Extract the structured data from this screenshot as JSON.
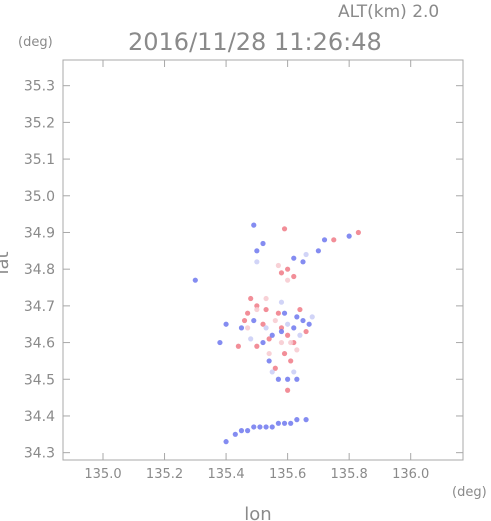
{
  "header": {
    "altitude": "ALT(km) 2.0",
    "timestamp": "2016/11/28 11:26:48"
  },
  "colors": {
    "axis": "#a8a8a8",
    "text": "#8a8a8a",
    "positive": "#f07a86",
    "negative": "#6f78ee",
    "pale_positive": "#f7c9cf",
    "pale_negative": "#c9ccf6",
    "neutral": "#e8e8ee"
  },
  "chart_data": {
    "type": "scatter",
    "title": "2016/11/28 11:26:48",
    "subtitle": "ALT(km) 2.0",
    "xlabel": "lon",
    "ylabel": "lat",
    "xunit": "(deg)",
    "yunit": "(deg)",
    "xlim": [
      134.87,
      136.17
    ],
    "ylim": [
      34.28,
      35.37
    ],
    "xticks": [
      "135.0",
      "135.2",
      "135.4",
      "135.6",
      "135.8",
      "136.0"
    ],
    "yticks": [
      "34.3",
      "34.4",
      "34.5",
      "34.6",
      "34.7",
      "34.8",
      "34.9",
      "35.0",
      "35.1",
      "35.2",
      "35.3"
    ],
    "grid": false,
    "legend": "none",
    "series": [
      {
        "color_key": "positive",
        "points": [
          [
            135.48,
            34.72
          ],
          [
            135.5,
            34.7
          ],
          [
            135.47,
            34.68
          ],
          [
            135.52,
            34.65
          ],
          [
            135.58,
            34.64
          ],
          [
            135.6,
            34.62
          ],
          [
            135.54,
            34.61
          ],
          [
            135.59,
            34.57
          ],
          [
            135.61,
            34.55
          ],
          [
            135.56,
            34.53
          ],
          [
            135.6,
            34.8
          ],
          [
            135.62,
            34.78
          ],
          [
            135.58,
            34.79
          ],
          [
            135.83,
            34.9
          ],
          [
            135.75,
            34.88
          ],
          [
            135.59,
            34.91
          ],
          [
            135.5,
            34.59
          ],
          [
            135.62,
            34.6
          ],
          [
            135.46,
            34.66
          ],
          [
            135.64,
            34.69
          ],
          [
            135.57,
            34.68
          ],
          [
            135.44,
            34.59
          ],
          [
            135.6,
            34.47
          ],
          [
            135.66,
            34.63
          ],
          [
            135.53,
            34.69
          ]
        ]
      },
      {
        "color_key": "negative",
        "points": [
          [
            135.55,
            34.62
          ],
          [
            135.58,
            34.63
          ],
          [
            135.62,
            34.64
          ],
          [
            135.65,
            34.66
          ],
          [
            135.67,
            34.65
          ],
          [
            135.52,
            34.6
          ],
          [
            135.6,
            34.5
          ],
          [
            135.57,
            34.5
          ],
          [
            135.63,
            34.5
          ],
          [
            135.5,
            34.85
          ],
          [
            135.52,
            34.87
          ],
          [
            135.65,
            34.82
          ],
          [
            135.7,
            34.85
          ],
          [
            135.72,
            34.88
          ],
          [
            135.8,
            34.89
          ],
          [
            135.45,
            34.64
          ],
          [
            135.49,
            34.66
          ],
          [
            135.59,
            34.68
          ],
          [
            135.63,
            34.67
          ],
          [
            135.54,
            34.55
          ],
          [
            135.62,
            34.83
          ],
          [
            135.49,
            34.92
          ],
          [
            135.3,
            34.77
          ],
          [
            135.4,
            34.65
          ],
          [
            135.38,
            34.6
          ]
        ]
      },
      {
        "color_key": "pale_positive",
        "points": [
          [
            135.5,
            34.69
          ],
          [
            135.56,
            34.66
          ],
          [
            135.61,
            34.6
          ],
          [
            135.54,
            34.57
          ],
          [
            135.6,
            34.77
          ],
          [
            135.47,
            34.64
          ],
          [
            135.58,
            34.6
          ],
          [
            135.53,
            34.72
          ],
          [
            135.63,
            34.58
          ],
          [
            135.57,
            34.81
          ]
        ]
      },
      {
        "color_key": "pale_negative",
        "points": [
          [
            135.53,
            34.64
          ],
          [
            135.6,
            34.65
          ],
          [
            135.64,
            34.62
          ],
          [
            135.55,
            34.52
          ],
          [
            135.5,
            34.82
          ],
          [
            135.66,
            34.84
          ],
          [
            135.48,
            34.61
          ],
          [
            135.62,
            34.52
          ],
          [
            135.58,
            34.71
          ],
          [
            135.68,
            34.67
          ]
        ]
      },
      {
        "color_key": "negative",
        "points": [
          [
            135.43,
            34.35
          ],
          [
            135.45,
            34.36
          ],
          [
            135.47,
            34.36
          ],
          [
            135.49,
            34.37
          ],
          [
            135.51,
            34.37
          ],
          [
            135.53,
            34.37
          ],
          [
            135.55,
            34.37
          ],
          [
            135.57,
            34.38
          ],
          [
            135.59,
            34.38
          ],
          [
            135.61,
            34.38
          ],
          [
            135.63,
            34.39
          ],
          [
            135.66,
            34.39
          ],
          [
            135.4,
            34.33
          ]
        ]
      }
    ]
  }
}
